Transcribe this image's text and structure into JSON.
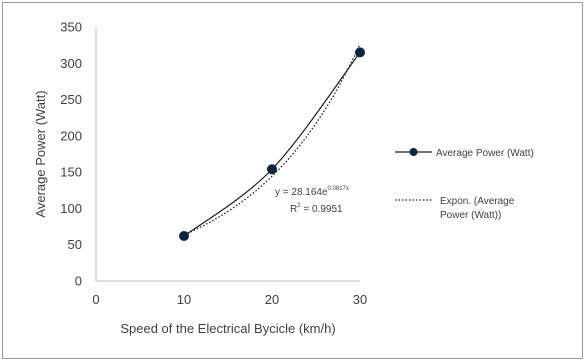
{
  "chart_data": {
    "type": "line",
    "title": "",
    "xlabel": "Speed of the Electrical Bycicle (km/h)",
    "ylabel": "Average Power (Watt)",
    "xlim": [
      0,
      30
    ],
    "ylim": [
      0,
      350
    ],
    "x_ticks": [
      0,
      10,
      20,
      30
    ],
    "y_ticks": [
      0,
      50,
      100,
      150,
      200,
      250,
      300,
      350
    ],
    "grid": false,
    "legend_position": "right",
    "series": [
      {
        "name": "Average Power (Watt)",
        "x": [
          10,
          20,
          30
        ],
        "values": [
          62,
          154,
          315
        ],
        "color": "#1f1f1f",
        "marker": "circle",
        "marker_color": "#0b2440"
      },
      {
        "name": "Expon. (Average Power (Watt))",
        "legend_lines": [
          "Expon. (Average",
          "Power (Watt))"
        ],
        "type": "trendline-exponential",
        "style": "dotted",
        "color": "#1f1f1f",
        "coefficient": 28.164,
        "exponent": 0.0817
      }
    ],
    "annotations": {
      "equation_prefix": "y = 28.164e",
      "equation_exponent": "0.0817x",
      "r2_prefix": "R",
      "r2_sup": "2",
      "r2_suffix": " = 0.9951"
    }
  }
}
